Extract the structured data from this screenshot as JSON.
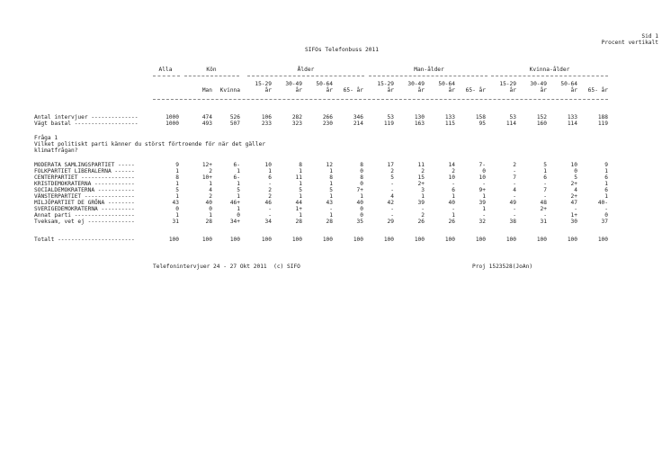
{
  "header": {
    "page": "Sid 1",
    "mode": "Procent vertikalt",
    "title": "SIFOs Telefonbuss 2011"
  },
  "groups": {
    "alla": "Alla",
    "kon": "Kön",
    "alder": "Ålder",
    "man_alder": "Man-ålder",
    "kvinna_alder": "Kvinna-ålder"
  },
  "columns_top": [
    "",
    "",
    "",
    "15-29",
    "30-49",
    "50-64",
    "",
    "15-29",
    "30-49",
    "50-64",
    "",
    "15-29",
    "30-49",
    "50-64",
    ""
  ],
  "columns_bottom": [
    "",
    "Man",
    "Kvinna",
    "år",
    "år",
    "år",
    "65- år",
    "år",
    "år",
    "år",
    "65- år",
    "år",
    "år",
    "år",
    "65- år"
  ],
  "base_rows": [
    {
      "label": "Antal intervjuer --------------",
      "values": [
        "1000",
        "474",
        "526",
        "106",
        "282",
        "266",
        "346",
        "53",
        "130",
        "133",
        "158",
        "53",
        "152",
        "133",
        "188"
      ]
    },
    {
      "label": "Vägt bastal -------------------",
      "values": [
        "1000",
        "493",
        "507",
        "233",
        "323",
        "230",
        "214",
        "119",
        "163",
        "115",
        "95",
        "114",
        "160",
        "114",
        "119"
      ]
    }
  ],
  "question": {
    "number": "Fråga 1",
    "line1": "Vilket politiskt parti känner du störst förtroende för när det gäller",
    "line2": "klimatfrågan?"
  },
  "rows": [
    {
      "label": "MODERATA SAMLINGSPARTIET -----",
      "values": [
        "9",
        "12+",
        "6-",
        "10",
        "8",
        "12",
        "8",
        "17",
        "11",
        "14",
        "7-",
        "2",
        "5",
        "10",
        "9"
      ]
    },
    {
      "label": "FOLKPARTIET LIBERALERNA ------",
      "values": [
        "1",
        "2",
        "1",
        "1",
        "1",
        "1",
        "0",
        "2",
        "2",
        "2",
        "0",
        "-",
        "1",
        "0",
        "1"
      ]
    },
    {
      "label": "CENTERPARTIET ----------------",
      "values": [
        "8",
        "10+",
        "6-",
        "6",
        "11",
        "8",
        "8",
        "5",
        "15",
        "10",
        "10",
        "7",
        "6",
        "5",
        "6"
      ]
    },
    {
      "label": "KRISTDEMOKRATERNA ------------",
      "values": [
        "1",
        "1",
        "1",
        "-",
        "1",
        "1",
        "0",
        "-",
        "2+",
        "-",
        "-",
        "-",
        "-",
        "2+",
        "1"
      ]
    },
    {
      "label": "SOCIALDEMOKRATERNA -----------",
      "values": [
        "5",
        "4",
        "5",
        "2",
        "5",
        "5",
        "7+",
        "-",
        "3",
        "6",
        "9+",
        "4",
        "7",
        "4",
        "6"
      ]
    },
    {
      "label": "VÄNSTERPARTIET ---------------",
      "values": [
        "1",
        "2",
        "1",
        "2",
        "1",
        "1",
        "1",
        "4",
        "1",
        "1",
        "1",
        "-",
        "-",
        "2+",
        "1"
      ]
    },
    {
      "label": "MILJÖPARTIET DE GRÖNA --------",
      "values": [
        "43",
        "40",
        "46+",
        "46",
        "44",
        "43",
        "40",
        "42",
        "39",
        "40",
        "39",
        "49",
        "48",
        "47",
        "40-"
      ]
    },
    {
      "label": "SVERIGEDEMOKRATERNA ----------",
      "values": [
        "0",
        "0",
        "1",
        "-",
        "1+",
        "-",
        "0",
        "-",
        "-",
        "-",
        "1",
        "-",
        "2+",
        "-",
        "-"
      ]
    },
    {
      "label": "Annat parti ------------------",
      "values": [
        "1",
        "1",
        "0",
        "-",
        "1",
        "1",
        "0",
        "-",
        "2",
        "1",
        "-",
        "-",
        "-",
        "1+",
        "0"
      ]
    },
    {
      "label": "Tveksam, vet ej --------------",
      "values": [
        "31",
        "28",
        "34+",
        "34",
        "28",
        "28",
        "35",
        "29",
        "26",
        "26",
        "32",
        "38",
        "31",
        "30",
        "37"
      ]
    }
  ],
  "total_row": {
    "label": "Totalt -----------------------",
    "values": [
      "100",
      "100",
      "100",
      "100",
      "100",
      "100",
      "100",
      "100",
      "100",
      "100",
      "100",
      "100",
      "100",
      "100",
      "100"
    ]
  },
  "footer": {
    "left": "Telefonintervjuer 24 - 27 Okt 2011  (c) SIFO",
    "right": "Proj 1523528(JoAn)"
  }
}
